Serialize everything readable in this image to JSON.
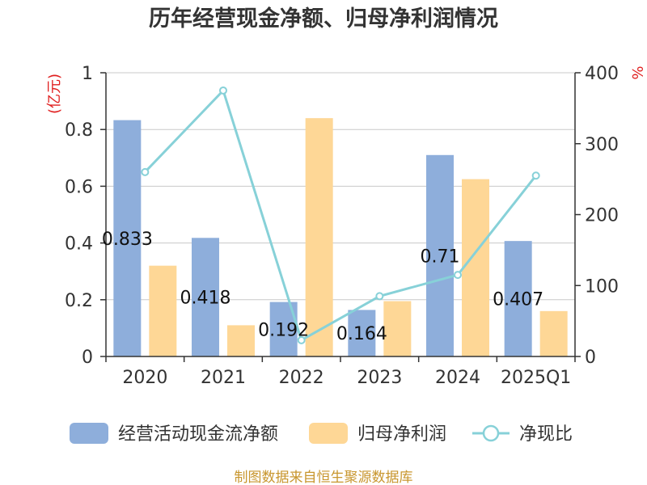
{
  "title": "历年经营现金净额、归母净利润情况",
  "source": "制图数据来自恒生聚源数据库",
  "colors": {
    "cash": "#8eaedb",
    "profit": "#fed796",
    "ratio": "#87d1d8",
    "axis": "#333333",
    "grid": "#c8c8c8",
    "unit": "#e02020",
    "source": "#c8962e"
  },
  "chart_data": {
    "type": "bar",
    "title": "历年经营现金净额、归母净利润情况",
    "categories": [
      "2020",
      "2021",
      "2022",
      "2023",
      "2024",
      "2025Q1"
    ],
    "left_unit": "(亿元)",
    "right_unit": "%",
    "left_ylim": [
      0,
      1
    ],
    "right_ylim": [
      0,
      400
    ],
    "left_ticks": [
      "0",
      "0.2",
      "0.4",
      "0.6",
      "0.8",
      "1"
    ],
    "right_ticks": [
      "0",
      "100",
      "200",
      "300",
      "400"
    ],
    "grid": true,
    "legend_position": "bottom",
    "series": [
      {
        "name": "经营活动现金流净额",
        "type": "bar",
        "axis": "left",
        "values": [
          0.833,
          0.418,
          0.192,
          0.164,
          0.71,
          0.407
        ],
        "labels": [
          "0.833",
          "0.418",
          "0.192",
          "0.164",
          "0.71",
          "0.407"
        ]
      },
      {
        "name": "归母净利润",
        "type": "bar",
        "axis": "left",
        "values": [
          0.32,
          0.11,
          0.84,
          0.195,
          0.625,
          0.16
        ]
      },
      {
        "name": "净现比",
        "type": "line",
        "axis": "right",
        "values": [
          260,
          375,
          23,
          85,
          115,
          255
        ]
      }
    ]
  }
}
